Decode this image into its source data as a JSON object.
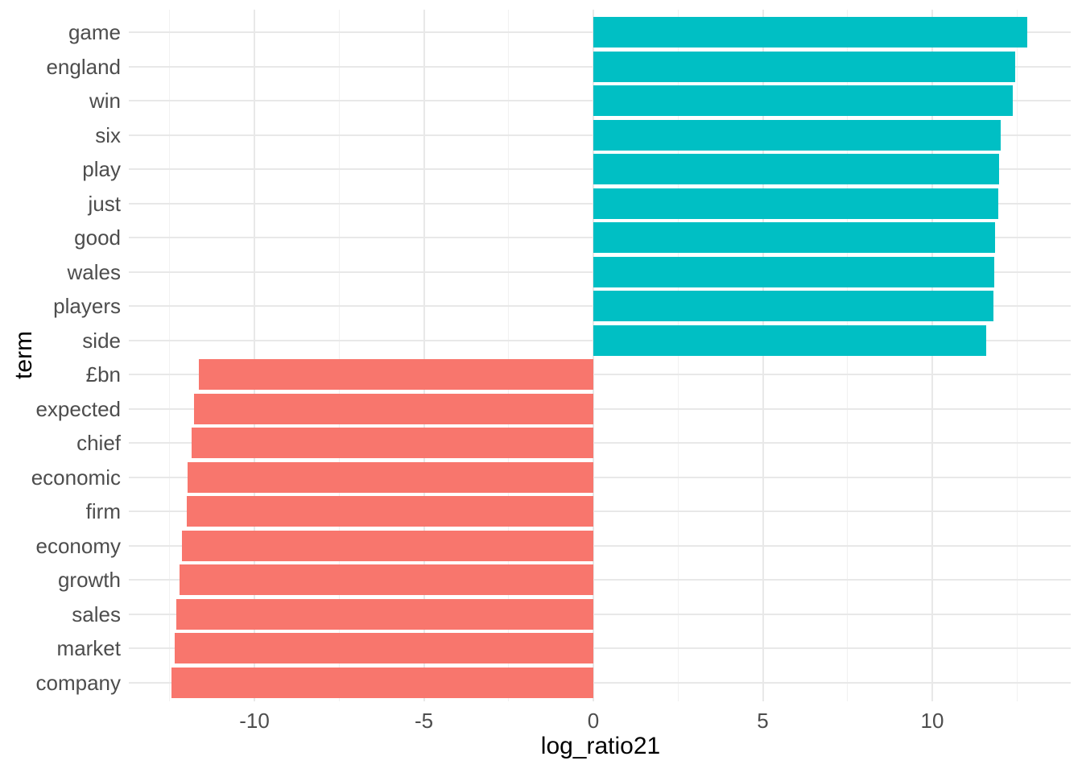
{
  "chart_data": {
    "type": "bar",
    "orientation": "horizontal",
    "title": "",
    "xlabel": "log_ratio21",
    "ylabel": "term",
    "categories": [
      "game",
      "england",
      "win",
      "six",
      "play",
      "just",
      "good",
      "wales",
      "players",
      "side",
      "£bn",
      "expected",
      "chief",
      "economic",
      "firm",
      "economy",
      "growth",
      "sales",
      "market",
      "company"
    ],
    "values": [
      12.8,
      12.45,
      12.37,
      12.02,
      11.97,
      11.95,
      11.85,
      11.83,
      11.81,
      11.59,
      -11.64,
      -11.78,
      -11.85,
      -11.97,
      -11.99,
      -12.14,
      -12.21,
      -12.3,
      -12.35,
      -12.45
    ],
    "x_ticks": [
      -10,
      -5,
      0,
      5,
      10
    ],
    "x_minor_ticks": [
      -12.5,
      -7.5,
      -2.5,
      2.5,
      7.5,
      12.5
    ],
    "xlim": [
      -13.7,
      14.1
    ],
    "grid": "on",
    "legend": "none",
    "colors": {
      "positive_bar": "#00BFC4",
      "negative_bar": "#F8766D",
      "grid_major": "#E8E8E8",
      "grid_minor": "#F1F1F1",
      "tick_text": "#4D4D4D",
      "axis_title_text": "#000000",
      "background": "#FFFFFF"
    }
  }
}
